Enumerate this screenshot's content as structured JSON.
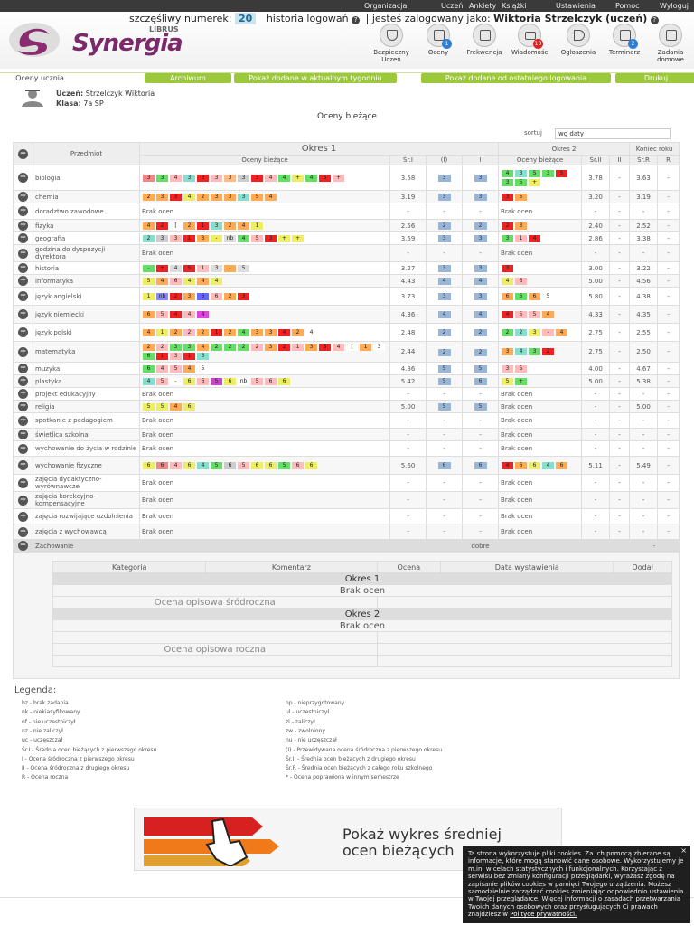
{
  "topnav": [
    "Organizacja",
    "Uczeń",
    "Ankiety",
    "Książki",
    "Ustawienia",
    "Pomoc",
    "Wyloguj"
  ],
  "header": {
    "lucky_label": "szczęśliwy numerek:",
    "lucky_number": "20",
    "history": "historia logowań",
    "logged_as": "| jesteś zalogowany jako:",
    "user": "Wiktoria Strzelczyk (uczeń)",
    "brand": "Synergia",
    "brand_sub": "LIBRUS"
  },
  "icons": [
    {
      "label": "Bezpieczny Uczeń",
      "icon": "shield-icon",
      "badge": ""
    },
    {
      "label": "Oceny",
      "icon": "grades-icon",
      "badge": "1"
    },
    {
      "label": "Frekwencja",
      "icon": "attendance-icon",
      "badge": ""
    },
    {
      "label": "Wiadomości",
      "icon": "mail-icon",
      "badge": "10"
    },
    {
      "label": "Ogłoszenia",
      "icon": "megaphone-icon",
      "badge": ""
    },
    {
      "label": "Terminarz",
      "icon": "calendar-icon",
      "badge": "2"
    },
    {
      "label": "Zadania domowe",
      "icon": "homework-icon",
      "badge": ""
    }
  ],
  "tabs": {
    "current": "Oceny ucznia",
    "archive": "Archiwum",
    "week": "Pokaż dodane w aktualnym tygodniu",
    "since": "Pokaż dodane od ostatniego logowania",
    "print": "Drukuj"
  },
  "student": {
    "name_label": "Uczeń:",
    "name": "Strzelczyk Wiktoria",
    "class_label": "Klasa:",
    "class": "7a SP"
  },
  "page_title": "Oceny bieżące",
  "sort": {
    "label": "sortuj",
    "value": "wg daty"
  },
  "table_head": {
    "subject": "Przedmiot",
    "p1": "Okres 1",
    "p2": "Okres 2",
    "year": "Koniec roku",
    "cur": "Oceny bieżące",
    "sr1": "Śr.I",
    "i1": "(I)",
    "i": "I",
    "cur2": "Oceny bieżące",
    "sr2": "Śr.II",
    "ii": "II",
    "srr": "Śr.R",
    "r": "R"
  },
  "rows": [
    {
      "s": "biologia",
      "g1": [
        [
          "3",
          "#e88"
        ],
        [
          "3",
          "#6d6"
        ],
        [
          "4",
          "#fbb"
        ],
        [
          "3",
          "#8dc"
        ],
        [
          "3",
          "#e22"
        ],
        [
          "3",
          "#fbb"
        ],
        [
          "3",
          "#fb8"
        ],
        [
          "3",
          "#ccc"
        ],
        [
          "3",
          "#e22"
        ],
        [
          "4",
          "#fbb"
        ],
        [
          "4",
          "#6d6"
        ],
        [
          "+",
          "#ee6"
        ],
        [
          "4",
          "#6d6"
        ],
        [
          "5",
          "#e22"
        ],
        [
          "+",
          "#fbb"
        ]
      ],
      "a1": "3.58",
      "p1": "3",
      "f1": "3",
      "g2": [
        [
          "4",
          "#6d6"
        ],
        [
          "3",
          "#8dc"
        ],
        [
          "5",
          "#6d6"
        ],
        [
          "3",
          "#6d6"
        ],
        [
          "5",
          "#e22"
        ],
        [
          "3",
          "#6d6"
        ],
        [
          "5",
          "#6d6"
        ],
        [
          "+",
          "#ee6"
        ]
      ],
      "a2": "3.78",
      "ii": "-",
      "ar": "3.63",
      "r": "-"
    },
    {
      "s": "chemia",
      "g1": [
        [
          "2",
          "#fa5"
        ],
        [
          "3",
          "#fa5"
        ],
        [
          "3",
          "#e22"
        ],
        [
          "4",
          "#ee6"
        ],
        [
          "2",
          "#fa5"
        ],
        [
          "3",
          "#fa5"
        ],
        [
          "3",
          "#fa5"
        ],
        [
          "3",
          "#8dc"
        ],
        [
          "5",
          "#fa5"
        ],
        [
          "4",
          "#fa5"
        ]
      ],
      "a1": "3.19",
      "p1": "3",
      "f1": "3",
      "g2": [
        [
          "3",
          "#e22"
        ],
        [
          "5",
          "#fa5"
        ]
      ],
      "a2": "3.20",
      "ii": "-",
      "ar": "3.19",
      "r": "-"
    },
    {
      "s": "doradztwo zawodowe",
      "none": "Brak ocen",
      "a1": "-",
      "p1": "-",
      "f1": "-",
      "none2": "Brak ocen",
      "a2": "-",
      "ii": "-",
      "ar": "-",
      "r": "-"
    },
    {
      "s": "fizyka",
      "g1": [
        [
          "4",
          "#fa5"
        ],
        [
          "2",
          "#e22"
        ],
        [
          "[",
          "#fff"
        ],
        [
          "2",
          "#fa5"
        ],
        [
          "1",
          "#e22"
        ],
        [
          "3",
          "#8dc"
        ],
        [
          "2",
          "#fa5"
        ],
        [
          "4",
          "#fa5"
        ],
        [
          "1",
          "#ee6"
        ]
      ],
      "a1": "2.56",
      "p1": "2",
      "f1": "2",
      "g2": [
        [
          "2",
          "#e22"
        ],
        [
          "3",
          "#fa5"
        ]
      ],
      "a2": "2.40",
      "ii": "-",
      "ar": "2.52",
      "r": "-"
    },
    {
      "s": "geografia",
      "g1": [
        [
          "2",
          "#8dc"
        ],
        [
          "3",
          "#ccc"
        ],
        [
          "3",
          "#fbb"
        ],
        [
          "1",
          "#e22"
        ],
        [
          "3",
          "#fa5"
        ],
        [
          "-",
          "#ee6"
        ],
        [
          "nb",
          "#ddd"
        ],
        [
          "4",
          "#6d6"
        ],
        [
          "5",
          "#fbb"
        ],
        [
          "3",
          "#e22"
        ],
        [
          "+",
          "#ee6"
        ],
        [
          "+",
          "#ee6"
        ]
      ],
      "a1": "3.59",
      "p1": "3",
      "f1": "3",
      "g2": [
        [
          "3",
          "#6d6"
        ],
        [
          "1",
          "#fbb"
        ],
        [
          "4",
          "#e22"
        ]
      ],
      "a2": "2.86",
      "ii": "-",
      "ar": "3.38",
      "r": "-"
    },
    {
      "s": "godzina do dyspozycji dyrektora",
      "none": "Brak ocen",
      "a1": "-",
      "p1": "-",
      "f1": "-",
      "none2": "Brak ocen",
      "a2": "-",
      "ii": "-",
      "ar": "-",
      "r": "-"
    },
    {
      "s": "historia",
      "g1": [
        [
          "-",
          "#6d6"
        ],
        [
          "+",
          "#e22"
        ],
        [
          "4",
          "#ddd"
        ],
        [
          "5",
          "#e22"
        ],
        [
          "1",
          "#fbb"
        ],
        [
          "3",
          "#ddd"
        ],
        [
          "-",
          "#fa5"
        ],
        [
          "5",
          "#ddd"
        ]
      ],
      "a1": "3.27",
      "p1": "3",
      "f1": "3",
      "g2": [
        [
          "3",
          "#e22"
        ]
      ],
      "a2": "3.00",
      "ii": "-",
      "ar": "3.22",
      "r": "-"
    },
    {
      "s": "informatyka",
      "g1": [
        [
          "5",
          "#ee6"
        ],
        [
          "4",
          "#fa5"
        ],
        [
          "6",
          "#fbb"
        ],
        [
          "4",
          "#ee6"
        ],
        [
          "4",
          "#fa5"
        ],
        [
          "4",
          "#ee6"
        ]
      ],
      "a1": "4.43",
      "p1": "4",
      "f1": "4",
      "g2": [
        [
          "4",
          "#ee6"
        ],
        [
          "6",
          "#fbb"
        ]
      ],
      "a2": "5.00",
      "ii": "-",
      "ar": "4.56",
      "r": "-"
    },
    {
      "s": "język angielski",
      "g1": [
        [
          "1",
          "#ee6"
        ],
        [
          "nb",
          "#88f"
        ],
        [
          "2",
          "#e22"
        ],
        [
          "3",
          "#fa5"
        ],
        [
          "6",
          "#66f"
        ],
        [
          "6",
          "#fbb"
        ],
        [
          "2",
          "#fa5"
        ],
        [
          "3",
          "#e22"
        ]
      ],
      "a1": "3.73",
      "p1": "3",
      "f1": "3",
      "g2": [
        [
          "6",
          "#fa5"
        ],
        [
          "6",
          "#6d6"
        ],
        [
          "6",
          "#fa5"
        ],
        [
          "5",
          "#fff"
        ]
      ],
      "a2": "5.80",
      "ii": "-",
      "ar": "4.38",
      "r": "-"
    },
    {
      "s": "język niemiecki",
      "g1": [
        [
          "6",
          "#fa5"
        ],
        [
          "5",
          "#fbb"
        ],
        [
          "4",
          "#e22"
        ],
        [
          "4",
          "#fbb"
        ],
        [
          "4",
          "#d4d"
        ]
      ],
      "a1": "4.36",
      "p1": "4",
      "f1": "4",
      "g2": [
        [
          "4",
          "#e22"
        ],
        [
          "5",
          "#fbb"
        ],
        [
          "5",
          "#fbb"
        ],
        [
          "4",
          "#fa5"
        ]
      ],
      "a2": "4.33",
      "ii": "-",
      "ar": "4.35",
      "r": "-"
    },
    {
      "s": "język polski",
      "g1": [
        [
          "4",
          "#fa5"
        ],
        [
          "1",
          "#ee6"
        ],
        [
          "2",
          "#fa5"
        ],
        [
          "2",
          "#fbb"
        ],
        [
          "2",
          "#fa5"
        ],
        [
          "1",
          "#e22"
        ],
        [
          "2",
          "#fa5"
        ],
        [
          "4",
          "#6d6"
        ],
        [
          "3",
          "#fa5"
        ],
        [
          "3",
          "#fa5"
        ],
        [
          "4",
          "#e22"
        ],
        [
          "2",
          "#fa5"
        ],
        [
          "4",
          "#fff"
        ]
      ],
      "a1": "2.48",
      "p1": "2",
      "f1": "2",
      "g2": [
        [
          "2",
          "#6d6"
        ],
        [
          "2",
          "#8dc"
        ],
        [
          "3",
          "#ee6"
        ],
        [
          "-",
          "#fbb"
        ],
        [
          "4",
          "#fa5"
        ]
      ],
      "a2": "2.75",
      "ii": "-",
      "ar": "2.55",
      "r": "-"
    },
    {
      "s": "matematyka",
      "g1": [
        [
          "2",
          "#fa5"
        ],
        [
          "2",
          "#fbb"
        ],
        [
          "3",
          "#6d6"
        ],
        [
          "3",
          "#6d6"
        ],
        [
          "4",
          "#fa5"
        ],
        [
          "2",
          "#6d6"
        ],
        [
          "2",
          "#6d6"
        ],
        [
          "2",
          "#6d6"
        ],
        [
          "2",
          "#fbb"
        ],
        [
          "3",
          "#fa5"
        ],
        [
          "2",
          "#e22"
        ],
        [
          "1",
          "#fbb"
        ],
        [
          "3",
          "#fa5"
        ],
        [
          "3",
          "#e22"
        ],
        [
          "4",
          "#fbb"
        ],
        [
          "[",
          "#fff"
        ],
        [
          "1",
          "#fa5"
        ],
        [
          "3",
          "#fff"
        ],
        [
          "6",
          "#6d6"
        ],
        [
          "1",
          "#e22"
        ],
        [
          "3",
          "#fbb"
        ],
        [
          "1",
          "#e22"
        ],
        [
          "3",
          "#8dc"
        ]
      ],
      "a1": "2.44",
      "p1": "2",
      "f1": "2",
      "g2": [
        [
          "3",
          "#fa5"
        ],
        [
          "4",
          "#8dc"
        ],
        [
          "3",
          "#6d6"
        ],
        [
          "2",
          "#e22"
        ]
      ],
      "a2": "2.75",
      "ii": "-",
      "ar": "2.50",
      "r": "-"
    },
    {
      "s": "muzyka",
      "g1": [
        [
          "6",
          "#6d6"
        ],
        [
          "4",
          "#fbb"
        ],
        [
          "5",
          "#fbb"
        ],
        [
          "4",
          "#fa5"
        ],
        [
          "5",
          "#fff"
        ]
      ],
      "a1": "4.86",
      "p1": "5",
      "f1": "5",
      "g2": [
        [
          "3",
          "#fbb"
        ],
        [
          "5",
          "#fbb"
        ]
      ],
      "a2": "4.00",
      "ii": "-",
      "ar": "4.67",
      "r": "-"
    },
    {
      "s": "plastyka",
      "g1": [
        [
          "4",
          "#8dc"
        ],
        [
          "5",
          "#fbb"
        ],
        [
          "-",
          "#fff"
        ],
        [
          "6",
          "#ee6"
        ],
        [
          "6",
          "#fbb"
        ],
        [
          "5",
          "#c4c"
        ],
        [
          "6",
          "#ee6"
        ],
        [
          "nb",
          "#fff"
        ],
        [
          "5",
          "#fbb"
        ],
        [
          "6",
          "#fbb"
        ],
        [
          "6",
          "#ee6"
        ]
      ],
      "a1": "5.42",
      "p1": "5",
      "f1": "6",
      "g2": [
        [
          "5",
          "#ee6"
        ],
        [
          "+",
          "#6d6"
        ]
      ],
      "a2": "5.00",
      "ii": "-",
      "ar": "5.38",
      "r": "-"
    },
    {
      "s": "projekt edukacyjny",
      "none": "Brak ocen",
      "a1": "-",
      "p1": "-",
      "f1": "-",
      "none2": "Brak ocen",
      "a2": "-",
      "ii": "-",
      "ar": "-",
      "r": "-"
    },
    {
      "s": "religia",
      "g1": [
        [
          "5",
          "#ee6"
        ],
        [
          "5",
          "#ee6"
        ],
        [
          "4",
          "#fa5"
        ],
        [
          "6",
          "#ee6"
        ]
      ],
      "a1": "5.00",
      "p1": "5",
      "f1": "5",
      "none2": "Brak ocen",
      "a2": "-",
      "ii": "-",
      "ar": "5.00",
      "r": "-"
    },
    {
      "s": "spotkanie z pedagogiem",
      "none": "Brak ocen",
      "a1": "-",
      "p1": "-",
      "f1": "-",
      "none2": "Brak ocen",
      "a2": "-",
      "ii": "-",
      "ar": "-",
      "r": "-"
    },
    {
      "s": "świetlica szkolna",
      "none": "Brak ocen",
      "a1": "-",
      "p1": "-",
      "f1": "-",
      "none2": "Brak ocen",
      "a2": "-",
      "ii": "-",
      "ar": "-",
      "r": "-"
    },
    {
      "s": "wychowanie do życia w rodzinie",
      "none": "Brak ocen",
      "a1": "-",
      "p1": "-",
      "f1": "-",
      "none2": "Brak ocen",
      "a2": "-",
      "ii": "-",
      "ar": "-",
      "r": "-"
    },
    {
      "s": "wychowanie fizyczne",
      "g1": [
        [
          "6",
          "#ee6"
        ],
        [
          "6",
          "#e88"
        ],
        [
          "4",
          "#fbb"
        ],
        [
          "6",
          "#ee6"
        ],
        [
          "4",
          "#8dc"
        ],
        [
          "5",
          "#6d6"
        ],
        [
          "6",
          "#ccc"
        ],
        [
          "5",
          "#fbb"
        ],
        [
          "6",
          "#ee6"
        ],
        [
          "6",
          "#ee6"
        ],
        [
          "5",
          "#6d6"
        ],
        [
          "6",
          "#fbb"
        ],
        [
          "6",
          "#ee6"
        ]
      ],
      "a1": "5.60",
      "p1": "6",
      "f1": "6",
      "g2": [
        [
          "4",
          "#e22"
        ],
        [
          "6",
          "#fa5"
        ],
        [
          "6",
          "#ee6"
        ],
        [
          "4",
          "#8dc"
        ],
        [
          "6",
          "#fa5"
        ]
      ],
      "a2": "5.11",
      "ii": "-",
      "ar": "5.49",
      "r": "-"
    },
    {
      "s": "zajęcia dydaktyczno-wyrównawcze",
      "none": "Brak ocen",
      "a1": "-",
      "p1": "-",
      "f1": "-",
      "none2": "Brak ocen",
      "a2": "-",
      "ii": "-",
      "ar": "-",
      "r": "-"
    },
    {
      "s": "zajęcia korekcyjno-kompensacyjne",
      "none": "Brak ocen",
      "a1": "-",
      "p1": "-",
      "f1": "-",
      "none2": "Brak ocen",
      "a2": "-",
      "ii": "-",
      "ar": "-",
      "r": "-"
    },
    {
      "s": "zajęcia rozwijające uzdolnienia",
      "none": "Brak ocen",
      "a1": "-",
      "p1": "-",
      "f1": "-",
      "none2": "Brak ocen",
      "a2": "-",
      "ii": "-",
      "ar": "-",
      "r": "-"
    },
    {
      "s": "zajęcia z wychowawcą",
      "none": "Brak ocen",
      "a1": "-",
      "p1": "-",
      "f1": "-",
      "none2": "Brak ocen",
      "a2": "-",
      "ii": "-",
      "ar": "-",
      "r": "-"
    }
  ],
  "behavior": {
    "label": "Zachowanie",
    "value": "dobre",
    "dash": "-"
  },
  "detail": {
    "cols": [
      "Kategoria",
      "Komentarz",
      "Ocena",
      "Data wystawienia",
      "Dodał"
    ],
    "p1": "Okres 1",
    "p2": "Okres 2",
    "none": "Brak ocen",
    "desc1": "Ocena opisowa śródroczna",
    "desc2": "Ocena opisowa roczna"
  },
  "legend": {
    "title": "Legenda:",
    "left": [
      "bz - brak zadania",
      "nk - niekiasyfikowany",
      "nf - nie uczestniczył",
      "nz - nie zaliczył",
      "uc - uczęszczał",
      "Śr.I - Średnia ocen bieżących z pierwszego okresu",
      "I - Ocena śródroczna z pierwszego okresu",
      "II - Ocena śródroczna z drugiego okresu",
      "R - Ocena roczna"
    ],
    "right": [
      "np - nieprzygotowany",
      "ul - uczestniczył",
      "zl - zaliczył",
      "zw - zwolniony",
      "nu - nie uczęszczał",
      "(I) - Przewidywana ocena śródroczna z pierwszego okresu",
      "Śr.II - Średnia ocen bieżących z drugiego okresu",
      "Śr.R - Średnia ocen bieżących z całego roku szkolnego",
      "* - Ocena poprawiona w innym semestrze"
    ]
  },
  "banner": {
    "line1": "Pokaż wykres średniej",
    "line2": "ocen bieżących"
  },
  "cookie": {
    "text": "Ta strona wykorzystuje pliki cookies. Za ich pomocą zbierane są informacje, które mogą stanowić dane osobowe. Wykorzystujemy je m.in. w celach statystycznych i funkcjonalnych. Korzystając z serwisu bez zmiany konfiguracji przeglądarki, wyrażasz zgodę na zapisanie plików cookies w pamięci Twojego urządzenia. Możesz samodzielnie zarządzać cookies zmieniając odpowiednio ustawienia w Twojej przeglądarce. Więcej informacji o zasadach przetwarzania Twoich danych osobowych oraz przysługujących Ci prawach znajdziesz w",
    "link": "Polityce prywatności.",
    "close": "×"
  }
}
